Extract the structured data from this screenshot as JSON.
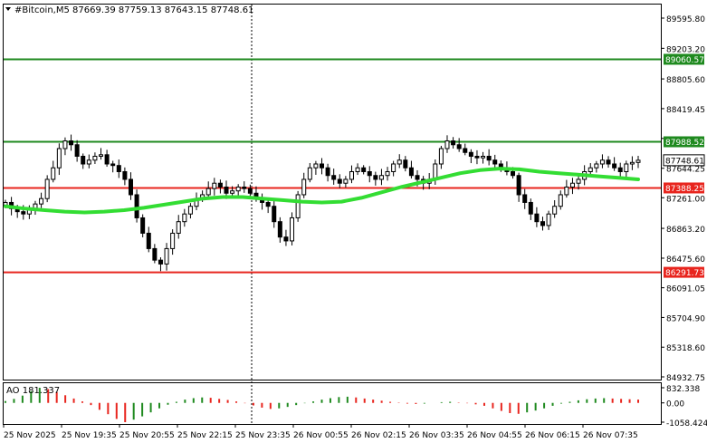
{
  "header": {
    "menu_icon": "triangle-down-icon",
    "symbol_line": "#Bitcoin,M5  87669.39 87759.13 87643.15 87748.61"
  },
  "price_axis": {
    "ticks": [
      "89595.80",
      "89203.20",
      "88805.60",
      "88419.45",
      "88031.85",
      "87644.25",
      "87261.00",
      "86863.20",
      "86475.60",
      "86091.05",
      "85704.90",
      "85318.60",
      "84932.75"
    ]
  },
  "levels": [
    {
      "price": 89060.57,
      "label": "89060.57",
      "color": "#1f8a1f"
    },
    {
      "price": 87988.52,
      "label": "87988.52",
      "color": "#1f8a1f"
    },
    {
      "price": 87748.61,
      "label": "87748.61",
      "color": "#000000"
    },
    {
      "price": 87388.25,
      "label": "87388.25",
      "color": "#e8251e"
    },
    {
      "price": 86291.73,
      "label": "86291.73",
      "color": "#e8251e"
    }
  ],
  "indicator": {
    "label": "AO 181.337",
    "ticks": [
      "832.338",
      "0.00",
      "-1058.424"
    ]
  },
  "time_axis": {
    "labels": [
      "25 Nov 2025",
      "25 Nov 19:35",
      "25 Nov 20:55",
      "25 Nov 22:15",
      "25 Nov 23:35",
      "26 Nov 00:55",
      "26 Nov 02:15",
      "26 Nov 03:35",
      "26 Nov 04:55",
      "26 Nov 06:15",
      "26 Nov 07:35"
    ]
  },
  "colors": {
    "candle": "#000000",
    "moving_average": "#33dd33",
    "ao_up": "#1f8a1f",
    "ao_down": "#e8251e"
  },
  "chart_data": {
    "type": "candlestick",
    "close_path": [
      87200,
      87120,
      87080,
      87050,
      87100,
      87180,
      87250,
      87500,
      87650,
      87900,
      88000,
      87950,
      87800,
      87700,
      87750,
      87800,
      87820,
      87700,
      87680,
      87600,
      87500,
      87300,
      87000,
      86800,
      86600,
      86450,
      86400,
      86600,
      86800,
      86950,
      87050,
      87150,
      87250,
      87300,
      87380,
      87450,
      87400,
      87320,
      87350,
      87400,
      87380,
      87320,
      87250,
      87200,
      87150,
      86950,
      86750,
      86700,
      87000,
      87300,
      87500,
      87650,
      87700,
      87650,
      87550,
      87500,
      87450,
      87500,
      87600,
      87650,
      87600,
      87550,
      87500,
      87550,
      87600,
      87700,
      87750,
      87650,
      87550,
      87500,
      87450,
      87500,
      87700,
      87900,
      88000,
      87950,
      87900,
      87850,
      87800,
      87780,
      87800,
      87750,
      87700,
      87650,
      87600,
      87550,
      87300,
      87200,
      87050,
      86950,
      86900,
      87050,
      87150,
      87300,
      87400,
      87450,
      87500,
      87600,
      87650,
      87700,
      87750,
      87700,
      87650,
      87600,
      87700,
      87720,
      87748.61
    ],
    "moving_average": [
      87150,
      87120,
      87100,
      87080,
      87070,
      87080,
      87100,
      87130,
      87170,
      87210,
      87250,
      87270,
      87270,
      87250,
      87230,
      87210,
      87200,
      87210,
      87260,
      87330,
      87400,
      87460,
      87520,
      87580,
      87620,
      87640,
      87630,
      87600,
      87580,
      87560,
      87540,
      87520,
      87500
    ],
    "ao_histogram": [
      100,
      220,
      400,
      640,
      832,
      760,
      600,
      420,
      240,
      80,
      -120,
      -380,
      -620,
      -880,
      -1058,
      -920,
      -740,
      -520,
      -300,
      -100,
      60,
      180,
      260,
      300,
      280,
      220,
      160,
      80,
      -20,
      -140,
      -260,
      -330,
      -300,
      -220,
      -120,
      -20,
      80,
      180,
      260,
      320,
      340,
      300,
      240,
      180,
      120,
      60,
      20,
      -40,
      -60,
      -40,
      0,
      40,
      60,
      20,
      -20,
      -80,
      -160,
      -300,
      -440,
      -560,
      -600,
      -520,
      -420,
      -300,
      -160,
      -40,
      60,
      140,
      200,
      240,
      260,
      240,
      220,
      200,
      181.337
    ]
  }
}
